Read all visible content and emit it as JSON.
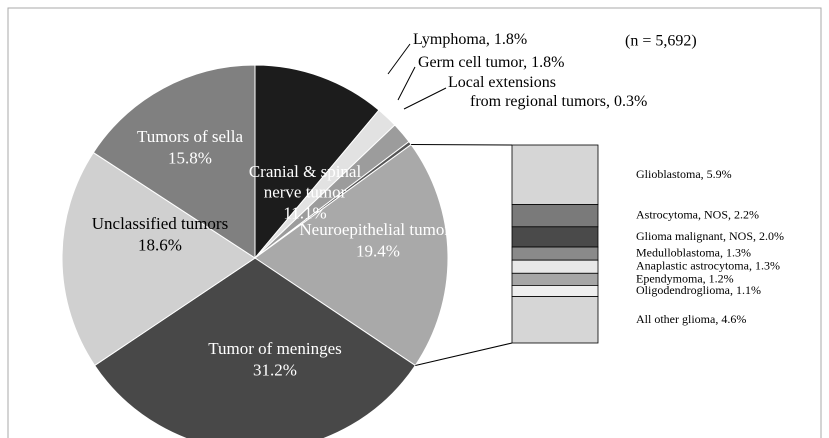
{
  "chart_data": [
    {
      "type": "pie",
      "annotation": "(n = 5,692)",
      "categories": [
        "Cranial & spinal nerve tumor",
        "Lymphoma",
        "Germ cell tumor",
        "Local extensions from regional tumors",
        "Neuroepithelial tumors",
        "Tumor of meninges",
        "Unclassified tumors",
        "Tumors of sella"
      ],
      "values": [
        11.1,
        1.8,
        1.8,
        0.3,
        19.4,
        31.2,
        18.6,
        15.8
      ],
      "value_labels": [
        "11.1%",
        "1.8%",
        "1.8%",
        "0.3%",
        "19.4%",
        "31.2%",
        "18.6%",
        "15.8%"
      ],
      "colors": [
        "#1c1c1c",
        "#e2e2e2",
        "#9c9c9c",
        "#555555",
        "#a9a9a9",
        "#484848",
        "#d0d0d0",
        "#808080"
      ]
    },
    {
      "type": "stacked_bar",
      "categories": [
        "Glioblastoma",
        "Astrocytoma, NOS",
        "Glioma malignant, NOS",
        "Medulloblastoma",
        "Anaplastic astrocytoma",
        "Ependymoma",
        "Oligodendroglioma",
        "All other glioma"
      ],
      "values": [
        5.9,
        2.2,
        2.0,
        1.3,
        1.3,
        1.2,
        1.1,
        4.6
      ],
      "value_labels": [
        "5.9%",
        "2.2%",
        "2.0%",
        "1.3%",
        "1.3%",
        "1.2%",
        "1.1%",
        "4.6%"
      ],
      "colors": [
        "#d6d6d6",
        "#7a7a7a",
        "#4a4a4a",
        "#8a8a8a",
        "#e8e8e8",
        "#a6a6a6",
        "#efefef",
        "#d6d6d6"
      ]
    }
  ]
}
